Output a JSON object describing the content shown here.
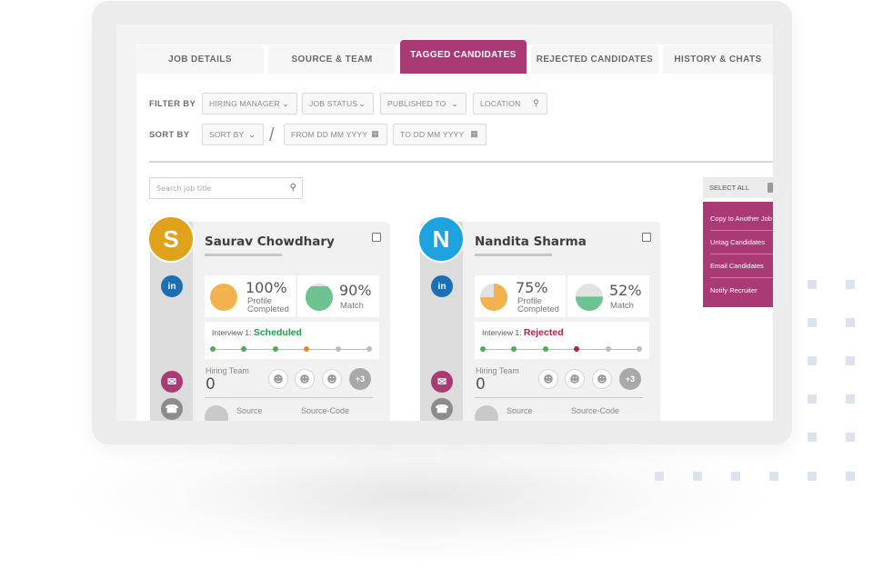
{
  "tabs": [
    {
      "label": "JOB DETAILS",
      "active": false
    },
    {
      "label": "SOURCE & TEAM",
      "active": false
    },
    {
      "label": "TAGGED CANDIDATES",
      "active": true
    },
    {
      "label": "REJECTED CANDIDATES",
      "active": false
    },
    {
      "label": "HISTORY & CHATS",
      "active": false
    }
  ],
  "filters": {
    "label": "FILTER BY",
    "hiring_manager": "HIRING MANAGER",
    "job_status": "JOB STATUS",
    "published_to": "PUBLISHED TO",
    "location": "LOCATION"
  },
  "sort": {
    "label": "SORT BY",
    "sort_by": "SORT BY",
    "separator": "/",
    "from": "FROM   DD MM YYYY",
    "to": "TO   DD MM YYYY"
  },
  "search": {
    "placeholder": "Search job title"
  },
  "actions": {
    "select_all": "SELECT ALL",
    "items": [
      "Copy to Another Job",
      "Untag Candidates",
      "Email Candidates",
      "Notify Recruiter"
    ]
  },
  "candidates": [
    {
      "initial": "S",
      "name": "Saurav Chowdhary",
      "avatar_color": "#e0a21a",
      "linkedin": "in",
      "profile_pct": "100%",
      "profile_label_1": "Profile",
      "profile_label_2": "Completed",
      "profile_fraction": 1.0,
      "match_pct": "90%",
      "match_label": "Match",
      "match_fraction": 0.9,
      "interview_label": "Interview 1:",
      "interview_status": "Scheduled",
      "interview_status_color": "#1e9e4a",
      "steps": [
        "#4caf50",
        "#4caf50",
        "#4caf50",
        "#e08a2a",
        "#bdbdbd",
        "#bdbdbd"
      ],
      "hiring_team_label": "Hiring Team",
      "hiring_team_count": "0",
      "more": "+3",
      "source_label": "Source",
      "source_code_label": "Source-Code"
    },
    {
      "initial": "N",
      "name": "Nandita Sharma",
      "avatar_color": "#1fa3e0",
      "linkedin": "in",
      "profile_pct": "75%",
      "profile_label_1": "Profile",
      "profile_label_2": "Completed",
      "profile_fraction": 0.75,
      "match_pct": "52%",
      "match_label": "Match",
      "match_fraction": 0.52,
      "interview_label": "Interview 1:",
      "interview_status": "Rejected",
      "interview_status_color": "#b2224a",
      "steps": [
        "#4caf50",
        "#4caf50",
        "#4caf50",
        "#b2224a",
        "#bdbdbd",
        "#bdbdbd"
      ],
      "hiring_team_label": "Hiring Team",
      "hiring_team_count": "0",
      "more": "+3",
      "source_label": "Source",
      "source_code_label": "Source-Code"
    }
  ],
  "colors": {
    "accent": "#a93a76",
    "pie_orange": "#f2b34e",
    "pie_green": "#6cc38f",
    "linkedin": "#1d6fb3",
    "email": "#a93a76",
    "phone": "#8c8c8c"
  },
  "icons": [
    "search-icon",
    "calendar-icon",
    "chevron-down-icon",
    "linkedin-icon",
    "email-icon",
    "phone-icon",
    "person-icon",
    "handshake-icon"
  ]
}
